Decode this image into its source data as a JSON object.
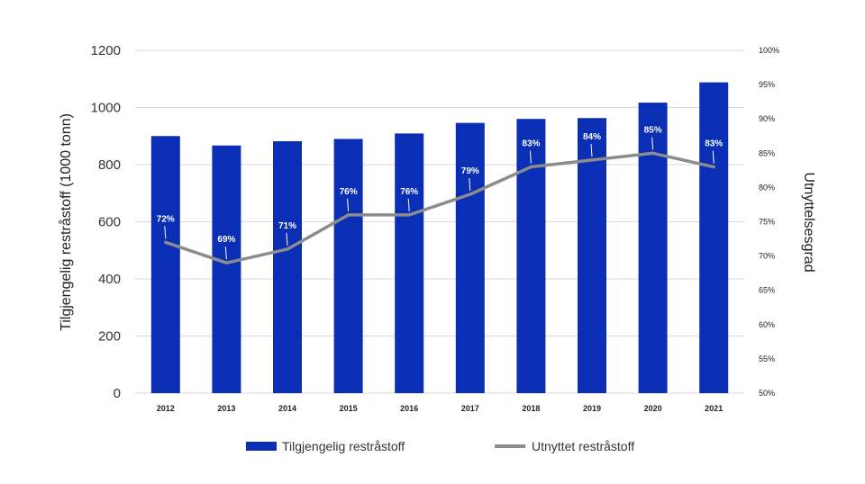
{
  "chart_data": {
    "type": "bar",
    "title": "",
    "categories": [
      "2012",
      "2013",
      "2014",
      "2015",
      "2016",
      "2017",
      "2018",
      "2019",
      "2020",
      "2021"
    ],
    "series": [
      {
        "name": "Tilgjengelig restråstoff",
        "type": "bar",
        "axis": "left",
        "color": "#0a2fb5",
        "values": [
          900,
          867,
          882,
          890,
          909,
          946,
          960,
          963,
          1017,
          1088
        ]
      },
      {
        "name": "Utnyttet restråstoff",
        "type": "line",
        "axis": "right",
        "color": "#8c8c8c",
        "values": [
          72,
          69,
          71,
          76,
          76,
          79,
          83,
          84,
          85,
          83
        ],
        "data_labels": [
          "72%",
          "69%",
          "71%",
          "76%",
          "76%",
          "79%",
          "83%",
          "84%",
          "85%",
          "83%"
        ]
      }
    ],
    "ylabel": "Tilgjengelig restråstoff (1000 tonn)",
    "ylim": [
      0,
      1200
    ],
    "yticks": [
      "0",
      "200",
      "400",
      "600",
      "800",
      "1000",
      "1200"
    ],
    "y2label": "Utnyttelsesgrad",
    "y2lim": [
      50,
      100
    ],
    "y2ticks": [
      "50%",
      "55%",
      "60%",
      "65%",
      "70%",
      "75%",
      "80%",
      "85%",
      "90%",
      "95%",
      "100%"
    ],
    "grid": true,
    "legend_position": "bottom"
  }
}
